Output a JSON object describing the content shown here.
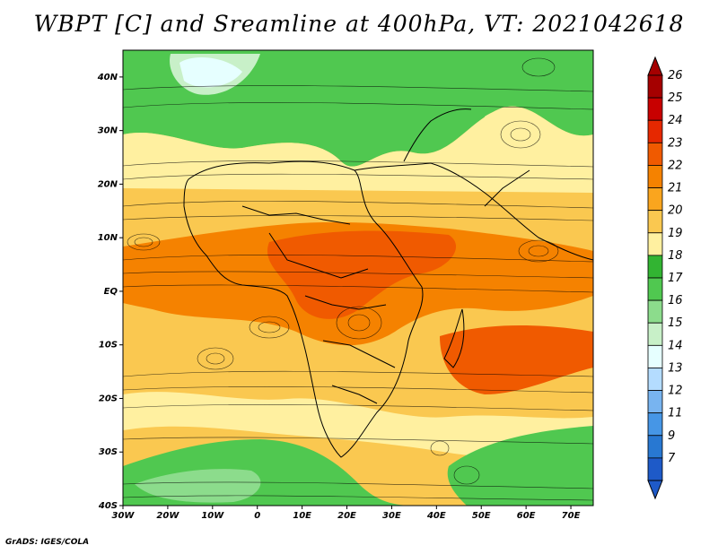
{
  "title": "WBPT [C] and Sreamline at 400hPa, VT: 2021042618",
  "credit": "GrADS: IGES/COLA",
  "map": {
    "lat_labels": [
      "40N",
      "30N",
      "20N",
      "10N",
      "EQ",
      "10S",
      "20S",
      "30S",
      "40S"
    ],
    "lon_labels": [
      "30W",
      "20W",
      "10W",
      "0",
      "10E",
      "20E",
      "30E",
      "40E",
      "50E",
      "60E",
      "70E"
    ],
    "lat_range": [
      -40,
      45
    ],
    "lon_range": [
      -30,
      75
    ]
  },
  "colorbar": {
    "labels": [
      "26",
      "25",
      "24",
      "23",
      "22",
      "21",
      "20",
      "19",
      "18",
      "17",
      "16",
      "15",
      "14",
      "13",
      "12",
      "11",
      "9",
      "7"
    ],
    "colors": [
      "#a50000",
      "#c80000",
      "#e62800",
      "#f05a00",
      "#f58200",
      "#faa51e",
      "#fac850",
      "#fff0a0",
      "#32b432",
      "#50c850",
      "#8cdc8c",
      "#c8f0c8",
      "#e6ffff",
      "#b4dcff",
      "#78b4f0",
      "#4696e6",
      "#2878d2",
      "#1e5ac8"
    ]
  }
}
